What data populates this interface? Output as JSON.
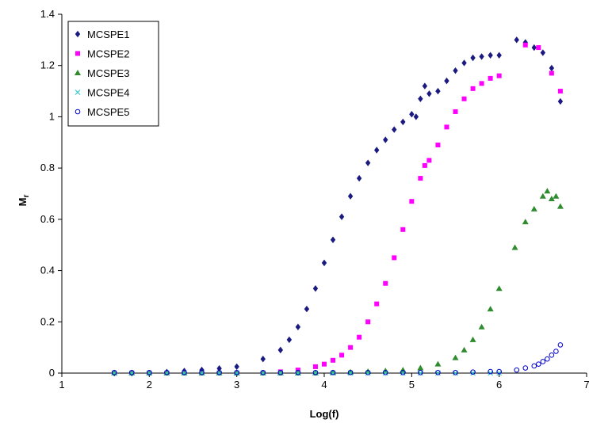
{
  "chart_data": {
    "type": "scatter",
    "title": "",
    "xlabel": "Log(f)",
    "ylabel": "Mr",
    "ylabel_main": "M",
    "ylabel_sub": "r",
    "xlim": [
      1,
      7
    ],
    "ylim": [
      0,
      1.4
    ],
    "x_ticks": [
      1,
      2,
      3,
      4,
      5,
      6,
      7
    ],
    "x_tick_labels": [
      "1",
      "2",
      "3",
      "4",
      "5",
      "6",
      "7"
    ],
    "y_ticks": [
      0,
      0.2,
      0.4,
      0.6,
      0.8,
      1,
      1.2,
      1.4
    ],
    "y_tick_labels": [
      "0",
      "0.2",
      "0.4",
      "0.6",
      "0.8",
      "1",
      "1.2",
      "1.4"
    ],
    "grid": false,
    "legend_position": "top-left",
    "series": [
      {
        "name": "MCSPE1",
        "marker": "diamond",
        "color": "#1a1a80",
        "x": [
          1.6,
          1.8,
          2.0,
          2.2,
          2.4,
          2.6,
          2.8,
          3.0,
          3.3,
          3.5,
          3.6,
          3.7,
          3.8,
          3.9,
          4.0,
          4.1,
          4.2,
          4.3,
          4.4,
          4.5,
          4.6,
          4.7,
          4.8,
          4.9,
          5.0,
          5.05,
          5.1,
          5.15,
          5.2,
          5.3,
          5.4,
          5.5,
          5.6,
          5.7,
          5.8,
          5.9,
          6.0,
          6.2,
          6.3,
          6.4,
          6.5,
          6.6,
          6.7
        ],
        "y": [
          0.0,
          0.0,
          0.0,
          0.004,
          0.008,
          0.012,
          0.018,
          0.025,
          0.055,
          0.09,
          0.13,
          0.18,
          0.25,
          0.33,
          0.43,
          0.52,
          0.61,
          0.69,
          0.76,
          0.82,
          0.87,
          0.91,
          0.95,
          0.98,
          1.01,
          1.0,
          1.07,
          1.12,
          1.09,
          1.1,
          1.14,
          1.18,
          1.21,
          1.23,
          1.235,
          1.24,
          1.24,
          1.3,
          1.29,
          1.27,
          1.25,
          1.19,
          1.06
        ]
      },
      {
        "name": "MCSPE2",
        "marker": "square",
        "color": "#ff00ff",
        "x": [
          1.6,
          1.8,
          2.0,
          2.2,
          2.4,
          2.6,
          2.8,
          3.0,
          3.3,
          3.5,
          3.7,
          3.9,
          4.0,
          4.1,
          4.2,
          4.3,
          4.4,
          4.5,
          4.6,
          4.7,
          4.8,
          4.9,
          5.0,
          5.1,
          5.15,
          5.2,
          5.3,
          5.4,
          5.5,
          5.6,
          5.7,
          5.8,
          5.9,
          6.0,
          6.3,
          6.45,
          6.6,
          6.7
        ],
        "y": [
          0.0,
          0.0,
          0.0,
          0.0,
          0.0,
          0.0,
          0.0,
          0.0,
          0.0,
          0.005,
          0.012,
          0.025,
          0.035,
          0.05,
          0.07,
          0.1,
          0.14,
          0.2,
          0.27,
          0.35,
          0.45,
          0.56,
          0.67,
          0.76,
          0.81,
          0.83,
          0.89,
          0.96,
          1.02,
          1.07,
          1.11,
          1.13,
          1.15,
          1.16,
          1.28,
          1.27,
          1.17,
          1.1
        ]
      },
      {
        "name": "MCSPE3",
        "marker": "triangle",
        "color": "#2e8b2e",
        "x": [
          1.6,
          1.8,
          2.0,
          2.2,
          2.4,
          2.6,
          2.8,
          3.0,
          3.3,
          3.5,
          3.7,
          3.9,
          4.1,
          4.3,
          4.5,
          4.7,
          4.9,
          5.1,
          5.3,
          5.5,
          5.6,
          5.7,
          5.8,
          5.9,
          6.0,
          6.18,
          6.3,
          6.4,
          6.5,
          6.55,
          6.6,
          6.65,
          6.7
        ],
        "y": [
          0.0,
          0.0,
          0.0,
          0.0,
          0.0,
          0.0,
          0.0,
          0.0,
          0.0,
          0.0,
          0.0,
          0.0,
          0.002,
          0.004,
          0.006,
          0.009,
          0.012,
          0.02,
          0.035,
          0.06,
          0.09,
          0.13,
          0.18,
          0.25,
          0.33,
          0.49,
          0.59,
          0.64,
          0.69,
          0.71,
          0.68,
          0.69,
          0.65
        ]
      },
      {
        "name": "MCSPE4",
        "marker": "x",
        "color": "#33cccc",
        "x": [
          1.6,
          1.8,
          2.0,
          2.2,
          2.4,
          2.6,
          2.8,
          3.0,
          3.3,
          3.5,
          3.7,
          3.9,
          4.1,
          4.3,
          4.5,
          4.7,
          4.9,
          5.1,
          5.3,
          5.5,
          5.7,
          5.9,
          6.0
        ],
        "y": [
          0.0,
          0.0,
          0.0,
          0.0,
          0.0,
          0.0,
          0.0,
          0.0,
          0.0,
          0.0,
          0.0,
          0.0,
          0.0,
          0.0,
          0.0,
          0.0,
          0.0,
          0.0,
          0.0,
          0.0,
          0.0,
          0.0,
          0.0
        ]
      },
      {
        "name": "MCSPE5",
        "marker": "circle",
        "color": "#0000cc",
        "x": [
          1.6,
          1.8,
          2.0,
          2.2,
          2.4,
          2.6,
          2.8,
          3.0,
          3.3,
          3.5,
          3.7,
          3.9,
          4.1,
          4.3,
          4.5,
          4.7,
          4.9,
          5.1,
          5.3,
          5.5,
          5.7,
          5.9,
          6.0,
          6.2,
          6.3,
          6.4,
          6.45,
          6.5,
          6.55,
          6.6,
          6.65,
          6.7
        ],
        "y": [
          0.002,
          0.002,
          0.002,
          0.002,
          0.002,
          0.002,
          0.002,
          0.002,
          0.002,
          0.002,
          0.002,
          0.002,
          0.002,
          0.002,
          0.002,
          0.002,
          0.002,
          0.002,
          0.002,
          0.002,
          0.004,
          0.006,
          0.006,
          0.012,
          0.02,
          0.028,
          0.035,
          0.045,
          0.055,
          0.07,
          0.085,
          0.11
        ]
      }
    ]
  }
}
